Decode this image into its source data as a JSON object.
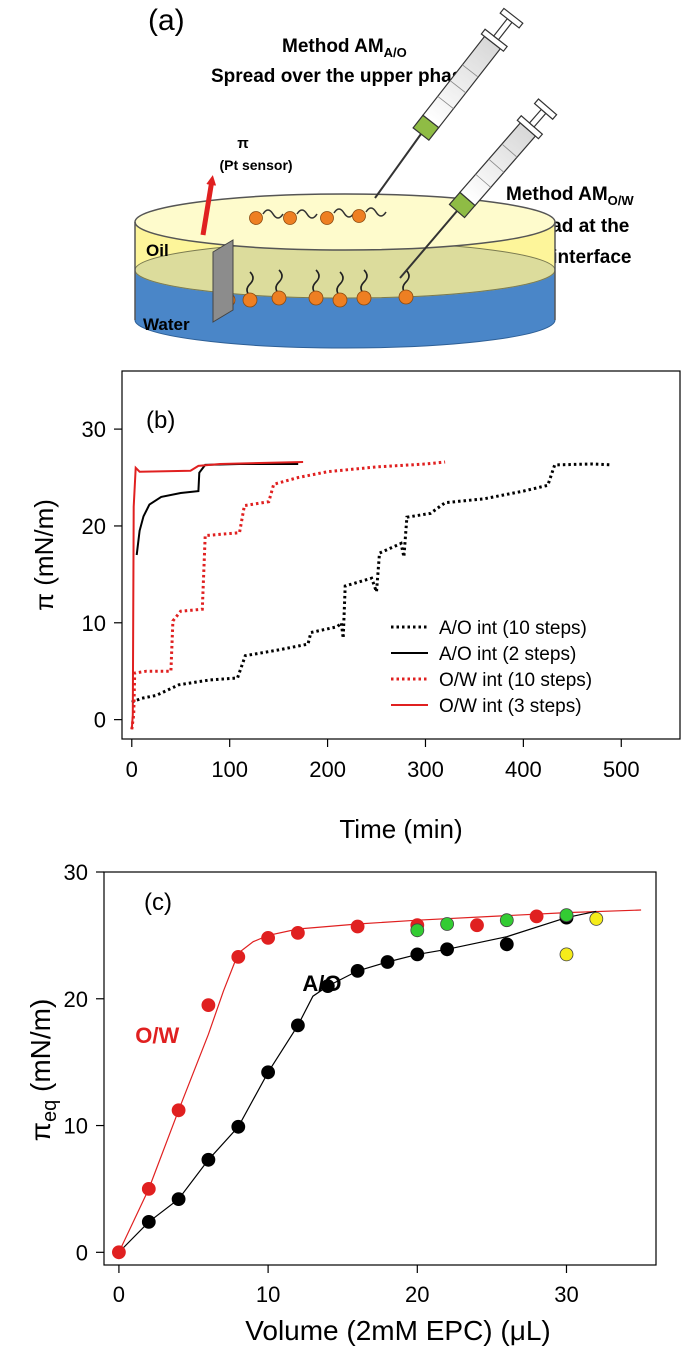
{
  "figure": {
    "panel_a": {
      "label": "(a)",
      "method_ao_line": "Method AM",
      "method_ao_sub": "A/O",
      "method_ao_desc": "Spread over the upper phase",
      "method_ow_line": "Method AM",
      "method_ow_sub": "O/W",
      "method_ow_desc1": "Spread at the",
      "method_ow_desc2": "O/W interface",
      "pi_symbol": "π",
      "pt_sensor": "(Pt sensor)",
      "oil_label": "Oil",
      "water_label": "Water",
      "colors": {
        "oil": "#fdf59a",
        "water": "#4a86c8",
        "arrow": "#e02020",
        "syringe_band": "#8fbc45",
        "molecule": "#ee7f22"
      }
    }
  },
  "chart_data": [
    {
      "type": "line",
      "panel_label": "(b)",
      "title": "",
      "xlabel": "Time (min)",
      "ylabel": "π (mN/m)",
      "xlim": [
        -10,
        560
      ],
      "ylim": [
        -2,
        36
      ],
      "xticks": [
        0,
        100,
        200,
        300,
        400,
        500
      ],
      "yticks": [
        0,
        10,
        20,
        30
      ],
      "xtick_labels": [
        "0",
        "100",
        "200",
        "300",
        "400",
        "500"
      ],
      "ytick_labels": [
        "0",
        "10",
        "20",
        "30"
      ],
      "legend_position": "lower-right",
      "series": [
        {
          "name": "A/O int (10 steps)",
          "color": "#000000",
          "style": "dotted",
          "points": [
            [
              0,
              1.8
            ],
            [
              10,
              2.2
            ],
            [
              25,
              2.5
            ],
            [
              48,
              3.6
            ],
            [
              80,
              4.1
            ],
            [
              108,
              4.3
            ],
            [
              116,
              6.6
            ],
            [
              150,
              7.2
            ],
            [
              180,
              7.8
            ],
            [
              183,
              9.0
            ],
            [
              210,
              9.6
            ],
            [
              214,
              10.0
            ],
            [
              216,
              8.4
            ],
            [
              218,
              13.8
            ],
            [
              245,
              14.6
            ],
            [
              250,
              13.2
            ],
            [
              253,
              17.2
            ],
            [
              275,
              18.2
            ],
            [
              278,
              16.8
            ],
            [
              281,
              20.9
            ],
            [
              305,
              21.3
            ],
            [
              320,
              22.4
            ],
            [
              360,
              22.8
            ],
            [
              400,
              23.6
            ],
            [
              425,
              24.2
            ],
            [
              432,
              26.3
            ],
            [
              470,
              26.4
            ],
            [
              490,
              26.3
            ]
          ]
        },
        {
          "name": "A/O int (2 steps)",
          "color": "#000000",
          "style": "solid",
          "points": [
            [
              5,
              17.0
            ],
            [
              8,
              19.5
            ],
            [
              12,
              21.0
            ],
            [
              18,
              22.2
            ],
            [
              30,
              23.0
            ],
            [
              50,
              23.4
            ],
            [
              68,
              23.6
            ],
            [
              69,
              25.5
            ],
            [
              75,
              26.3
            ],
            [
              110,
              26.4
            ],
            [
              170,
              26.4
            ]
          ]
        },
        {
          "name": "O/W int (10 steps)",
          "color": "#e02020",
          "style": "dotted",
          "points": [
            [
              0,
              -1.0
            ],
            [
              2,
              0.5
            ],
            [
              3,
              4.8
            ],
            [
              15,
              5.0
            ],
            [
              40,
              5.0
            ],
            [
              42,
              10.2
            ],
            [
              50,
              11.2
            ],
            [
              72,
              11.4
            ],
            [
              75,
              19.0
            ],
            [
              110,
              19.3
            ],
            [
              115,
              22.1
            ],
            [
              140,
              22.5
            ],
            [
              145,
              24.3
            ],
            [
              170,
              25.0
            ],
            [
              200,
              25.6
            ],
            [
              250,
              26.1
            ],
            [
              300,
              26.4
            ],
            [
              320,
              26.6
            ]
          ]
        },
        {
          "name": "O/W int (3 steps)",
          "color": "#e02020",
          "style": "solid",
          "points": [
            [
              0,
              -1.0
            ],
            [
              1,
              0.5
            ],
            [
              2,
              22.0
            ],
            [
              4,
              26.0
            ],
            [
              8,
              25.6
            ],
            [
              60,
              25.7
            ],
            [
              68,
              26.2
            ],
            [
              90,
              26.4
            ],
            [
              175,
              26.6
            ]
          ]
        }
      ]
    },
    {
      "type": "scatter",
      "panel_label": "(c)",
      "title": "",
      "xlabel": "Volume (2mM EPC) (μL)",
      "ylabel_main": "π",
      "ylabel_sub": "eq",
      "ylabel_rest": " (mN/m)",
      "xlim": [
        -1,
        36
      ],
      "ylim": [
        -1,
        30
      ],
      "xticks": [
        0,
        10,
        20,
        30
      ],
      "yticks": [
        0,
        10,
        20,
        30
      ],
      "xtick_labels": [
        "0",
        "10",
        "20",
        "30"
      ],
      "ytick_labels": [
        "0",
        "10",
        "20",
        "30"
      ],
      "annotations": [
        {
          "text": "O/W",
          "color": "#e02020",
          "x": 1.1,
          "y": 16.5
        },
        {
          "text": "A/O",
          "color": "#000000",
          "x": 12.3,
          "y": 20.6
        }
      ],
      "series": [
        {
          "name": "O/W",
          "marker_color": "#e02020",
          "x": [
            0,
            2,
            4,
            6,
            8,
            10,
            12,
            16,
            20,
            24,
            28
          ],
          "y": [
            0,
            5.0,
            11.2,
            19.5,
            23.3,
            24.8,
            25.2,
            25.7,
            25.8,
            25.8,
            26.5
          ]
        },
        {
          "name": "A/O",
          "marker_color": "#000000",
          "x": [
            2,
            4,
            6,
            8,
            10,
            12,
            14,
            16,
            18,
            20,
            22,
            26,
            30
          ],
          "y": [
            2.4,
            4.2,
            7.3,
            9.9,
            14.2,
            17.9,
            21.0,
            22.2,
            22.9,
            23.5,
            23.9,
            24.3,
            26.4
          ]
        },
        {
          "name": "green",
          "marker_color": "#33cc33",
          "x": [
            20,
            22,
            26,
            30
          ],
          "y": [
            25.4,
            25.9,
            26.2,
            26.6
          ]
        },
        {
          "name": "yellow",
          "marker_color": "#f5ec1a",
          "x": [
            30,
            32
          ],
          "y": [
            23.5,
            26.3
          ]
        }
      ],
      "fit_lines": [
        {
          "name": "O/W fit",
          "color": "#e02020",
          "points": [
            [
              0,
              0
            ],
            [
              2,
              5.0
            ],
            [
              4,
              11.2
            ],
            [
              6,
              17.2
            ],
            [
              7,
              20.6
            ],
            [
              8,
              23.6
            ],
            [
              9,
              24.5
            ],
            [
              10,
              25.0
            ],
            [
              12,
              25.5
            ],
            [
              16,
              25.9
            ],
            [
              20,
              26.2
            ],
            [
              25,
              26.5
            ],
            [
              30,
              26.8
            ],
            [
              35,
              27.0
            ]
          ]
        },
        {
          "name": "A/O fit",
          "color": "#000000",
          "points": [
            [
              0,
              0
            ],
            [
              2,
              2.4
            ],
            [
              4,
              4.2
            ],
            [
              6,
              7.3
            ],
            [
              8,
              9.9
            ],
            [
              10,
              14.2
            ],
            [
              12,
              17.9
            ],
            [
              13,
              20.2
            ],
            [
              14,
              21.0
            ],
            [
              16,
              22.2
            ],
            [
              18,
              22.9
            ],
            [
              20,
              23.5
            ],
            [
              22,
              23.9
            ],
            [
              26,
              24.9
            ],
            [
              30,
              26.4
            ],
            [
              32,
              26.9
            ]
          ]
        }
      ]
    }
  ]
}
